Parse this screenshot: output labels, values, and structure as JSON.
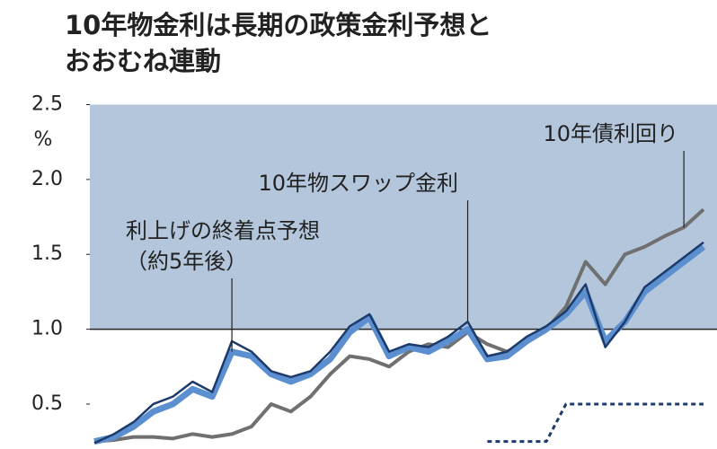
{
  "chart_data": {
    "type": "line",
    "title_lines": [
      "10年物金利は長期の政策金利予想と",
      "おおむね連動"
    ],
    "y_unit": "%",
    "ylim": [
      0.2,
      2.5
    ],
    "yticks": [
      0.5,
      {
        "value": 1,
        "label": "1.0"
      },
      1.5,
      {
        "value": 2,
        "label": "2.0"
      },
      2.5
    ],
    "shaded_range": [
      1,
      2.5
    ],
    "shade_color": "#b3c6db",
    "series": [
      {
        "color": "#707070",
        "width": 4,
        "values": [
          0.25,
          0.26,
          0.28,
          0.28,
          0.27,
          0.3,
          0.28,
          0.3,
          0.35,
          0.5,
          0.45,
          0.55,
          0.7,
          0.82,
          0.8,
          0.75,
          0.85,
          0.9,
          0.88,
          0.98,
          0.9,
          0.85,
          0.92,
          1.0,
          1.15,
          1.45,
          1.3,
          1.5,
          1.55,
          1.62,
          1.68,
          1.8
        ]
      },
      {
        "color": "#5b8fd0",
        "width": 7,
        "values": [
          0.25,
          0.28,
          0.35,
          0.45,
          0.5,
          0.6,
          0.55,
          0.85,
          0.82,
          0.7,
          0.65,
          0.7,
          0.8,
          0.98,
          1.08,
          0.82,
          0.88,
          0.85,
          0.92,
          1.0,
          0.8,
          0.82,
          0.92,
          1.0,
          1.1,
          1.25,
          0.92,
          1.05,
          1.25,
          1.35,
          1.45,
          1.55
        ]
      },
      {
        "color": "#1c3a6b",
        "width": 2.5,
        "values": [
          0.24,
          0.3,
          0.38,
          0.5,
          0.55,
          0.65,
          0.58,
          0.92,
          0.85,
          0.72,
          0.68,
          0.72,
          0.85,
          1.02,
          1.1,
          0.85,
          0.9,
          0.88,
          0.95,
          1.05,
          0.82,
          0.85,
          0.95,
          1.02,
          1.12,
          1.3,
          0.88,
          1.05,
          1.28,
          1.38,
          1.48,
          1.58
        ]
      },
      {
        "color": "#1c3a6b",
        "width": 3,
        "dashed": true,
        "values": [
          null,
          null,
          null,
          null,
          null,
          null,
          null,
          null,
          null,
          null,
          null,
          null,
          null,
          null,
          null,
          null,
          null,
          null,
          null,
          null,
          0.25,
          0.25,
          0.25,
          0.25,
          0.5,
          0.5,
          0.5,
          0.5,
          0.5,
          0.5,
          0.5,
          0.5
        ]
      }
    ],
    "annotations": [
      {
        "lines": [
          "10年債利回り"
        ],
        "series": 0,
        "point": 30
      },
      {
        "lines": [
          "10年物スワップ金利"
        ],
        "series": 2,
        "point": 19
      },
      {
        "lines": [
          "利上げの終着点予想",
          "（約5年後）"
        ],
        "series": 1,
        "point": 7
      }
    ]
  }
}
